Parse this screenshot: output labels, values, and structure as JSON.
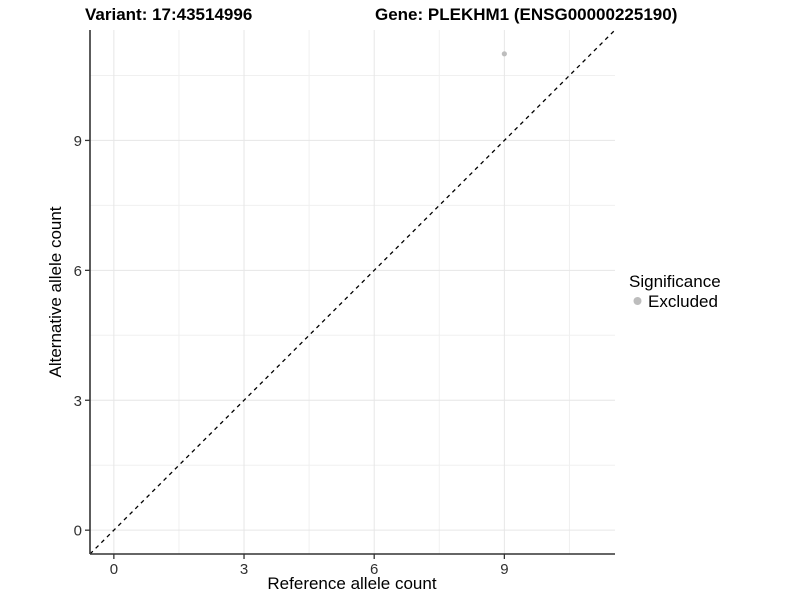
{
  "chart_data": {
    "type": "scatter",
    "titles": {
      "left": "Variant: 17:43514996",
      "right": "Gene: PLEKHM1 (ENSG00000225190)"
    },
    "xlabel": "Reference allele count",
    "ylabel": "Alternative allele count",
    "xlim": [
      -0.55,
      11.55
    ],
    "ylim": [
      -0.55,
      11.55
    ],
    "x_ticks": [
      0,
      3,
      6,
      9
    ],
    "y_ticks": [
      0,
      3,
      6,
      9
    ],
    "x_minor_ticks": [
      1.5,
      4.5,
      7.5,
      10.5
    ],
    "y_minor_ticks": [
      1.5,
      4.5,
      7.5,
      10.5
    ],
    "grid": true,
    "points": [
      {
        "x": 9,
        "y": 11,
        "significance": "Excluded"
      }
    ],
    "reference_line": {
      "kind": "identity",
      "line_style": "dashed"
    },
    "legend": {
      "title": "Significance",
      "position": "right",
      "items": [
        {
          "label": "Excluded",
          "color": "#bdbdbd",
          "marker": "circle"
        }
      ]
    },
    "colors": {
      "point_excluded": "#bdbdbd",
      "grid_major": "#e6e6e6",
      "grid_minor": "#f0f0f0",
      "axis": "#333333",
      "dashed_line": "#000000",
      "background": "#ffffff"
    }
  }
}
